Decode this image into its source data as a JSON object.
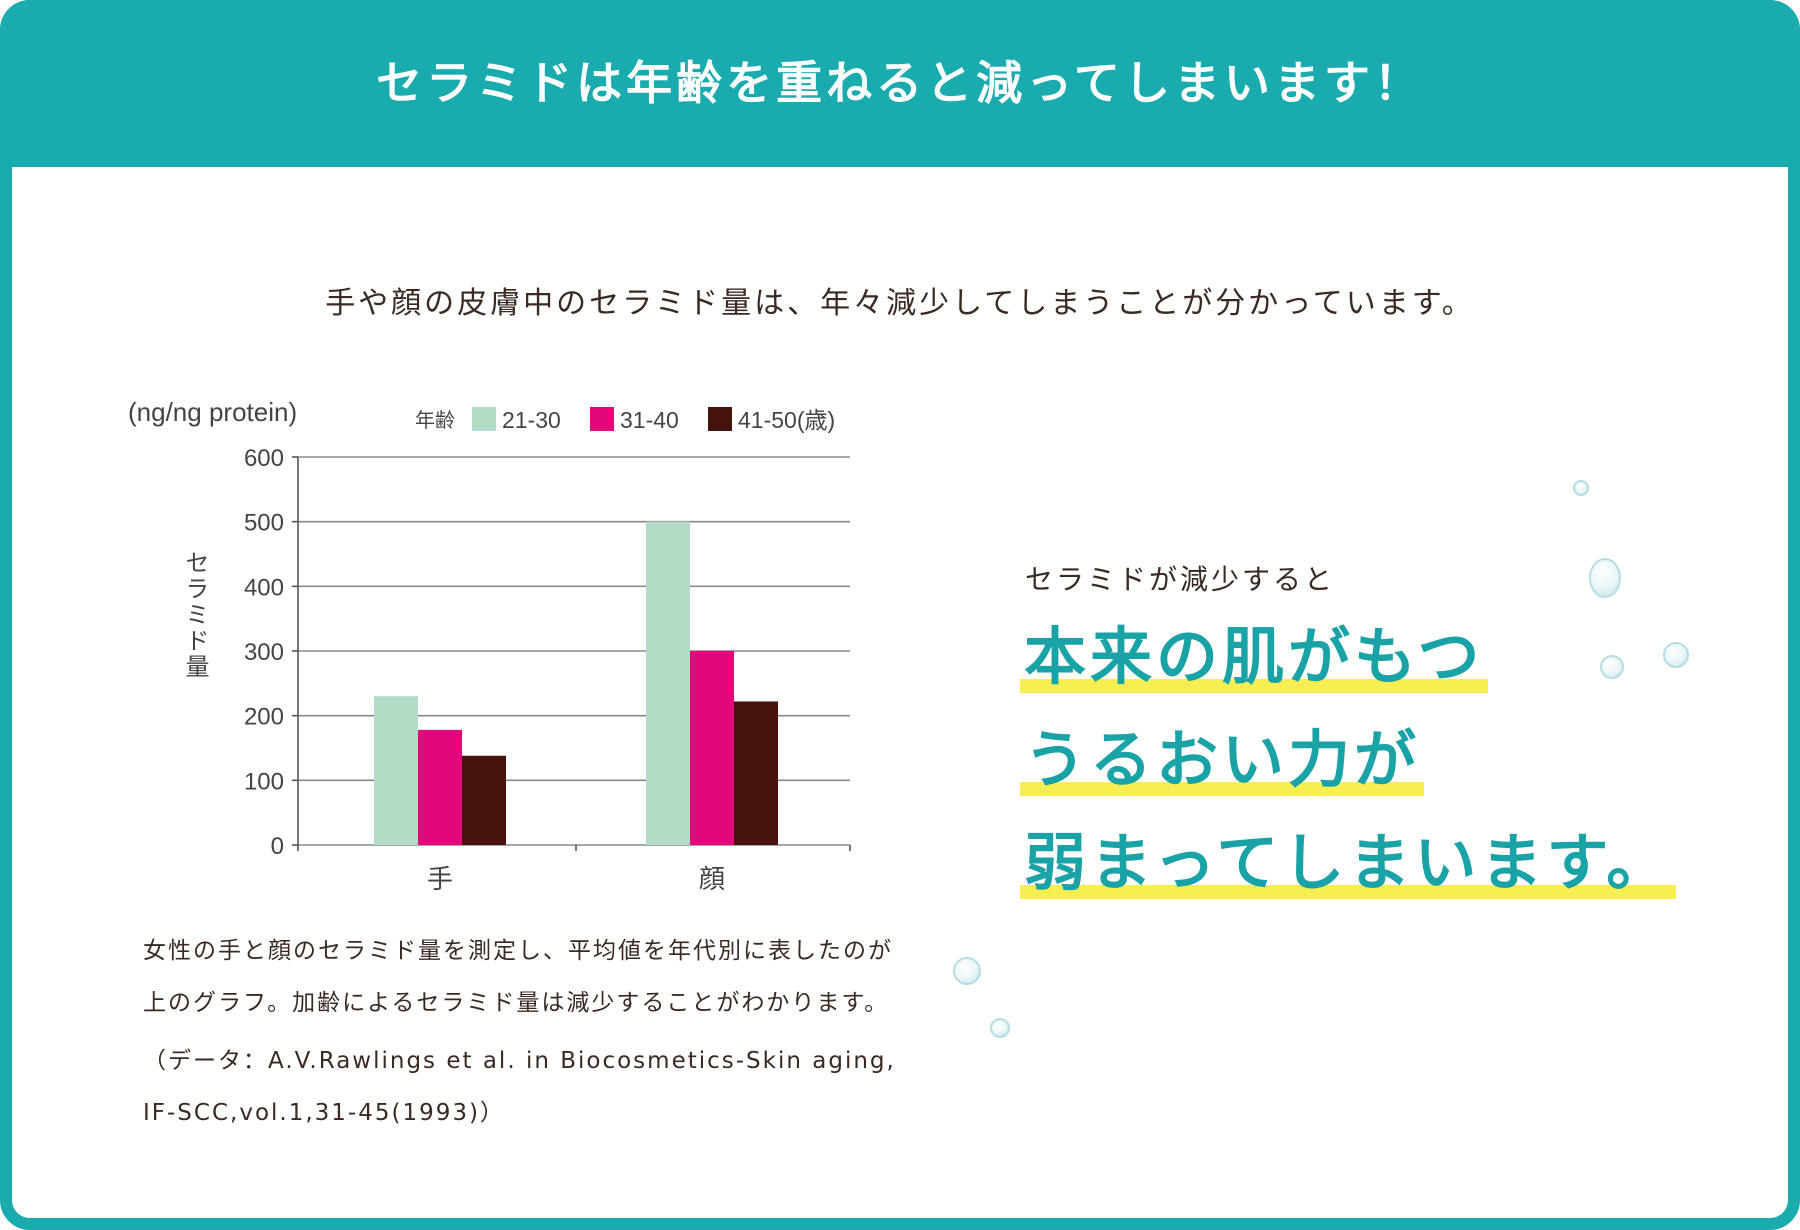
{
  "banner": {
    "title": "セラミドは年齢を重ねると減ってしまいます！"
  },
  "intro": "手や顔の皮膚中のセラミド量は、年々減少してしまうことが分かっています。",
  "chart_data": {
    "type": "bar",
    "unit_label": "(ng/ng protein)",
    "ylabel": "セラミド量",
    "legend_title": "年齢",
    "categories": [
      "手",
      "顔"
    ],
    "series": [
      {
        "name": "21-30",
        "values": [
          230,
          500
        ],
        "color": "#b2dcc6"
      },
      {
        "name": "31-40",
        "values": [
          178,
          300
        ],
        "color": "#e2077b"
      },
      {
        "name": "41-50(歳)",
        "values": [
          138,
          222
        ],
        "color": "#46140d"
      }
    ],
    "ylim": [
      0,
      600
    ],
    "yticks": [
      0,
      100,
      200,
      300,
      400,
      500,
      600
    ],
    "grid": true
  },
  "caption": {
    "line1": "女性の手と顔のセラミド量を測定し、平均値を年代別に表したのが",
    "line2": "上のグラフ。加齢によるセラミド量は減少することがわかります。",
    "source1": "（データ：A.V.Rawlings et al. in Biocosmetics-Skin aging,",
    "source2": "IF-SCC,vol.1,31-45(1993)）"
  },
  "side": {
    "lead": "セラミドが減少すると",
    "headline": [
      "本来の肌がもつ",
      "うるおい力が",
      "弱まってしまいます。"
    ]
  },
  "colors": {
    "accent": "#19abae",
    "highlight": "#f7ee52",
    "headline": "#1aa3a6"
  }
}
